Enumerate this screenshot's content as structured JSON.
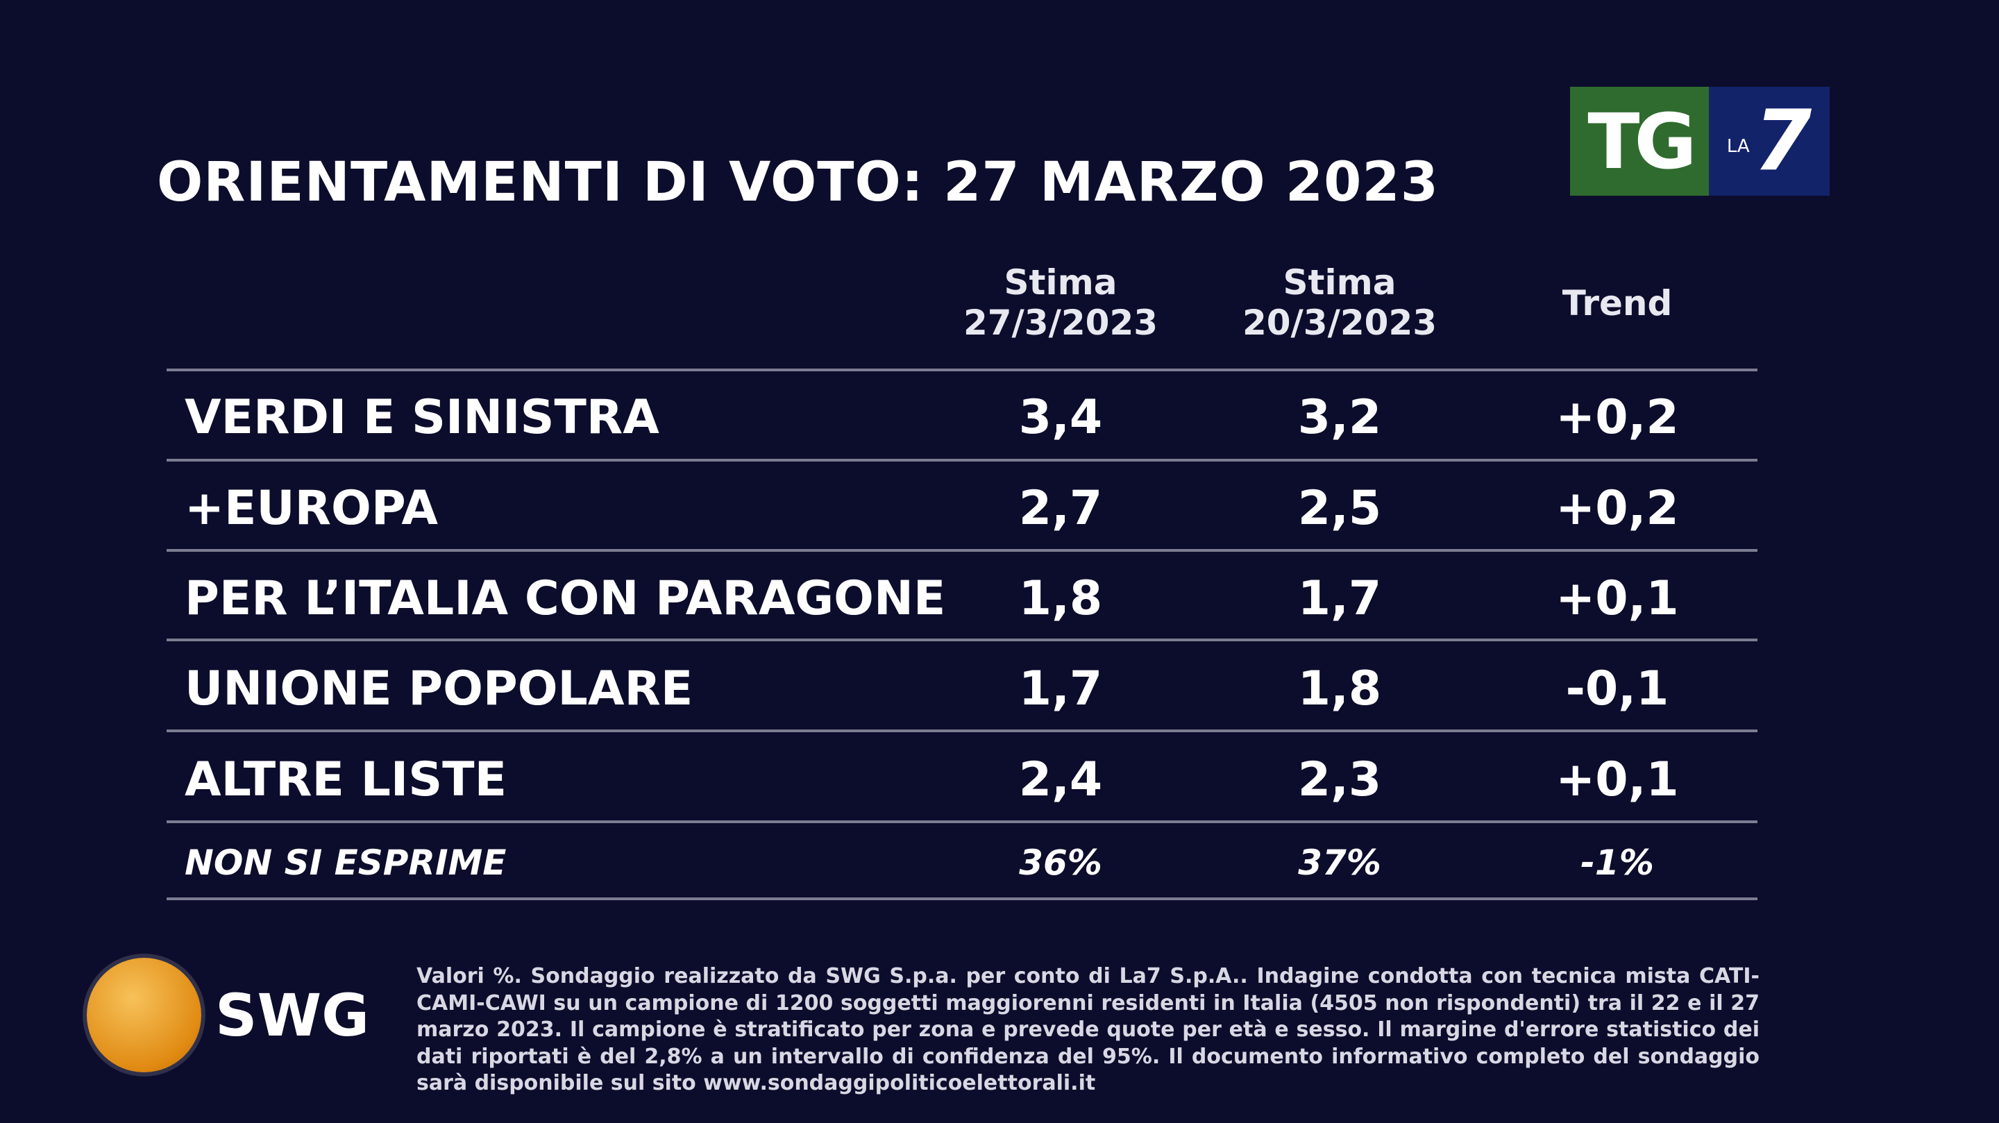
{
  "title": "ORIENTAMENTI DI VOTO: 27 MARZO 2023",
  "logo": {
    "tg": "TG",
    "la": "LA",
    "seven": "7",
    "green": "#2f6b2e",
    "blue": "#13236a"
  },
  "columns": [
    {
      "l1": "Stima",
      "l2": "27/3/2023"
    },
    {
      "l1": "Stima",
      "l2": "20/3/2023"
    },
    {
      "l1": "Trend",
      "l2": ""
    }
  ],
  "rows": [
    {
      "label": "VERDI E SINISTRA",
      "a": "3,4",
      "b": "3,2",
      "t": "+0,2"
    },
    {
      "label": "+EUROPA",
      "a": "2,7",
      "b": "2,5",
      "t": "+0,2"
    },
    {
      "label": "PER L’ITALIA CON PARAGONE",
      "a": "1,8",
      "b": "1,7",
      "t": "+0,1"
    },
    {
      "label": "UNIONE POPOLARE",
      "a": "1,7",
      "b": "1,8",
      "t": "-0,1"
    },
    {
      "label": "ALTRE LISTE",
      "a": "2,4",
      "b": "2,3",
      "t": "+0,1"
    },
    {
      "label": "NON SI ESPRIME",
      "a": "36%",
      "b": "37%",
      "t": "-1%"
    }
  ],
  "swg": "SWG",
  "note": "Valori %. Sondaggio realizzato da SWG S.p.a. per conto di La7 S.p.A.. Indagine condotta con tecnica mista CATI-CAMI-CAWI su un campione di 1200 soggetti maggiorenni residenti in Italia (4505 non rispondenti) tra il 22 e il 27 marzo 2023. Il campione è stratificato per zona e prevede quote per età e sesso. Il margine d'errore statistico dei dati riportati è del 2,8% a un intervallo di confidenza del 95%. Il documento informativo completo del sondaggio sarà disponibile sul sito www.sondaggipoliticoelettorali.it"
}
